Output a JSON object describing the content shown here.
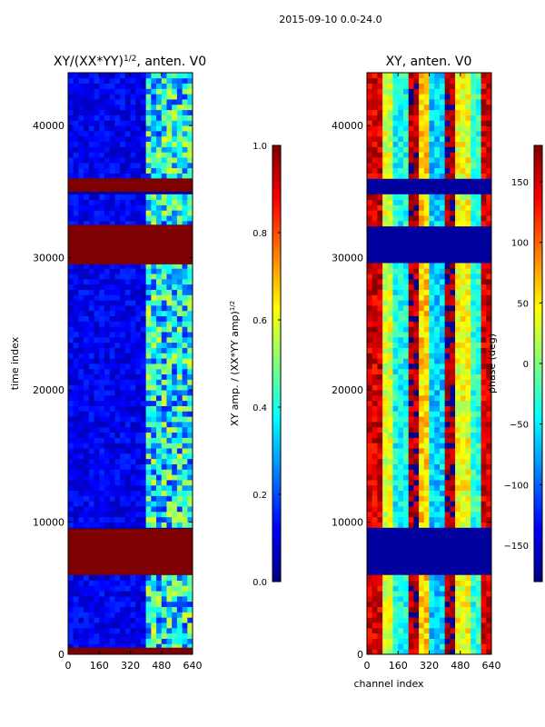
{
  "figure": {
    "suptitle": "2015-09-10 0.0-24.0"
  },
  "chart_data": [
    {
      "type": "heatmap",
      "title_main": "XY/(XX*YY)",
      "title_exp": "1/2",
      "title_tail": ", anten. V0",
      "xlabel": "",
      "ylabel": "time index",
      "xlim": [
        0,
        640
      ],
      "ylim": [
        0,
        44000
      ],
      "x_ticks": [
        0,
        160,
        320,
        480,
        640
      ],
      "y_ticks": [
        0,
        10000,
        20000,
        30000,
        40000
      ],
      "colorbar": {
        "label_main": "XY amp. / (XX*YY amp)",
        "label_exp": "1/2",
        "range": [
          0.0,
          1.0
        ],
        "ticks": [
          "0.0",
          "0.2",
          "0.4",
          "0.6",
          "0.8",
          "1.0"
        ],
        "colormap": [
          "#00007f",
          "#0000ff",
          "#007fff",
          "#00ffff",
          "#7fff7f",
          "#ffff00",
          "#ff7f00",
          "#ff0000",
          "#7f0000"
        ]
      },
      "saturated_time_bands": [
        [
          0,
          500
        ],
        [
          6000,
          9500
        ],
        [
          29500,
          32500
        ],
        [
          35000,
          36000
        ]
      ],
      "active_channel_range": [
        400,
        640
      ],
      "background_color": "#00009f",
      "saturated_color": "#7f0000"
    },
    {
      "type": "heatmap",
      "title": "XY, anten. V0",
      "xlabel": "channel index",
      "ylabel": "",
      "xlim": [
        0,
        640
      ],
      "ylim": [
        0,
        44000
      ],
      "x_ticks": [
        0,
        160,
        320,
        480,
        640
      ],
      "y_ticks": [
        0,
        10000,
        20000,
        30000,
        40000
      ],
      "colorbar": {
        "label": "phase (deg)",
        "range": [
          -180,
          180
        ],
        "ticks": [
          "−150",
          "−100",
          "−50",
          "0",
          "50",
          "100",
          "150"
        ],
        "colormap": [
          "#00007f",
          "#0000ff",
          "#007fff",
          "#00ffff",
          "#7fff7f",
          "#ffff00",
          "#ff7f00",
          "#ff0000",
          "#7f0000"
        ]
      },
      "blank_time_bands": [
        [
          6000,
          9500
        ],
        [
          29500,
          32500
        ],
        [
          35000,
          36000
        ]
      ],
      "band_phase_pattern_deg": [
        150,
        30,
        -40,
        160,
        60,
        -60,
        170,
        40,
        -30,
        150
      ],
      "background_color": "#00009f"
    }
  ]
}
